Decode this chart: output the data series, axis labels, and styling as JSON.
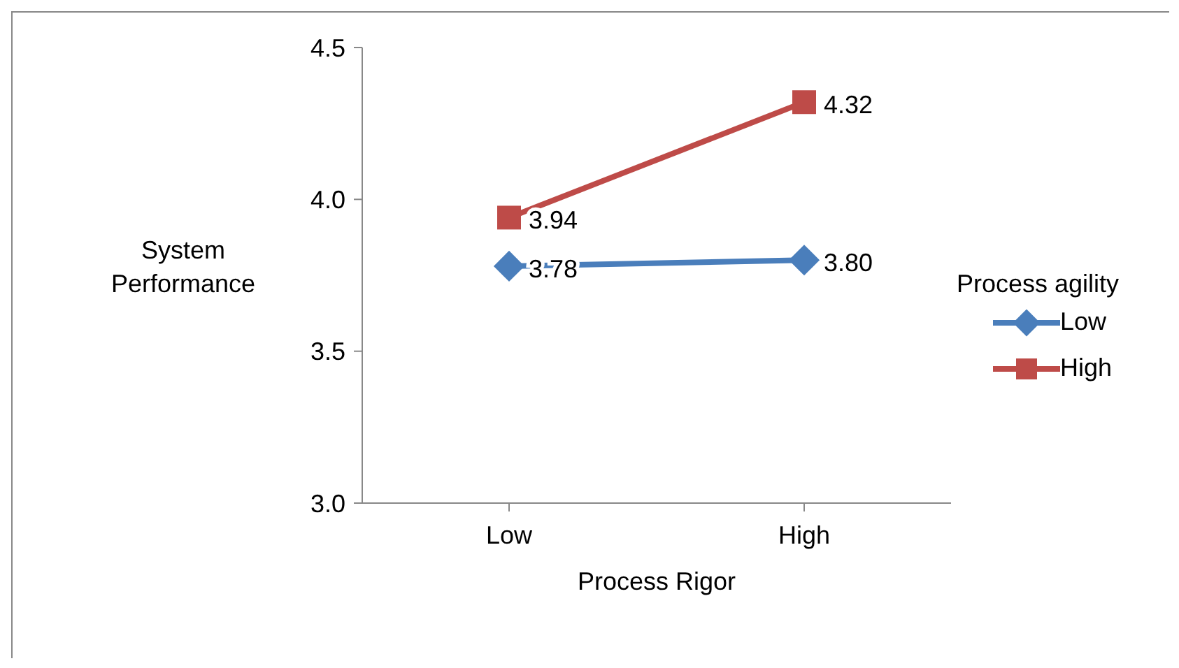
{
  "chart_data": {
    "type": "line",
    "xlabel": "Process Rigor",
    "ylabel": "System Performance",
    "legend_title": "Process agility",
    "categories": [
      "Low",
      "High"
    ],
    "series": [
      {
        "name": "Low",
        "color": "#4a7ebb",
        "marker": "diamond",
        "values": [
          3.78,
          3.8
        ],
        "value_labels": [
          "3.78",
          "3.80"
        ]
      },
      {
        "name": "High",
        "color": "#be4b48",
        "marker": "square",
        "values": [
          3.94,
          4.32
        ],
        "value_labels": [
          "3.94",
          "4.32"
        ]
      }
    ],
    "ylim": [
      3.0,
      4.5
    ],
    "yticks": [
      {
        "value": 3.0,
        "label": "3.0"
      },
      {
        "value": 3.5,
        "label": "3.5"
      },
      {
        "value": 4.0,
        "label": "4.0"
      },
      {
        "value": 4.5,
        "label": "4.5"
      }
    ],
    "grid": false,
    "legend": "right",
    "line_style": "solid"
  }
}
